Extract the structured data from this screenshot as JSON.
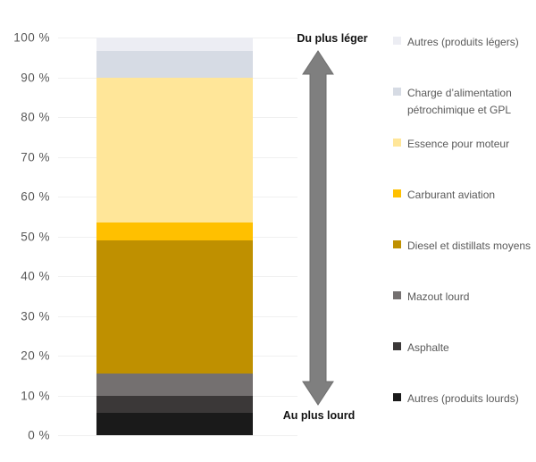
{
  "chart_data": {
    "type": "bar",
    "stacked": true,
    "orientation": "vertical",
    "title": "",
    "xlabel": "",
    "ylabel": "",
    "ylim": [
      0,
      100
    ],
    "grid": true,
    "legend_position": "right",
    "stack_order": "first-series-on-top",
    "yticks": [
      100,
      90,
      80,
      70,
      60,
      50,
      40,
      30,
      20,
      10,
      0
    ],
    "ytick_labels": [
      "100 %",
      "90 %",
      "80 %",
      "70 %",
      "60 %",
      "50 %",
      "40 %",
      "30 %",
      "20 %",
      "10 %",
      "0 %"
    ],
    "series": [
      {
        "name": "Autres (produits légers)",
        "value": 3.4,
        "color": "#ECEDF3"
      },
      {
        "name": "Charge d’alimentation pétrochimique et GPL",
        "value": 6.7,
        "color": "#D6DBE4"
      },
      {
        "name": "Essence pour moteur",
        "value": 36.5,
        "color": "#FFE699"
      },
      {
        "name": "Carburant aviation",
        "value": 4.5,
        "color": "#FFC000"
      },
      {
        "name": "Diesel et distillats moyens",
        "value": 33.4,
        "color": "#BF9000"
      },
      {
        "name": "Mazout lourd",
        "value": 5.6,
        "color": "#747070"
      },
      {
        "name": "Asphalte",
        "value": 4.2,
        "color": "#3B3838"
      },
      {
        "name": "Autres (produits lourds)",
        "value": 5.7,
        "color": "#1A1A1A"
      }
    ]
  },
  "annotations": {
    "top": "Du plus léger",
    "bottom": "Au plus lourd"
  },
  "style": {
    "arrow_color": "#7F7F7F",
    "arrow_stroke": "#6E6E6E",
    "axis_text_color": "#595959",
    "gridline_color": "#F0F0F0",
    "annotation_text_color": "#111111"
  }
}
